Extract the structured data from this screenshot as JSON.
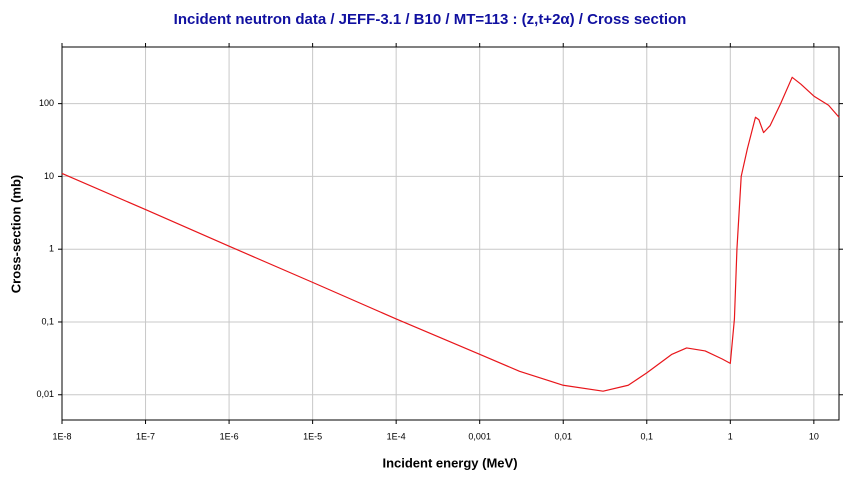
{
  "chart_data": {
    "type": "line",
    "title": "Incident neutron data / JEFF-3.1 / B10 / MT=113 : (z,t+2α) / Cross section",
    "x_label": "Incident energy (MeV)",
    "y_label": "Cross-section (mb)",
    "xscale": "log",
    "yscale": "log",
    "grid": true,
    "x": [
      1e-08,
      1e-07,
      1e-06,
      1e-05,
      0.0001,
      0.001,
      0.003,
      0.01,
      0.03,
      0.06,
      0.1,
      0.2,
      0.3,
      0.5,
      0.8,
      1,
      1.12,
      1.2,
      1.35,
      1.6,
      2.0,
      2.2,
      2.5,
      3,
      4,
      5.5,
      7,
      10,
      15,
      20
    ],
    "series": [
      {
        "color": "#e8161b",
        "values": [
          11,
          3.5,
          1.1,
          0.35,
          0.11,
          0.036,
          0.021,
          0.0135,
          0.0112,
          0.0135,
          0.02,
          0.036,
          0.044,
          0.04,
          0.031,
          0.027,
          0.11,
          1,
          10,
          24,
          65,
          60,
          40,
          50,
          100,
          230,
          185,
          127,
          95,
          65
        ]
      }
    ],
    "xlim": [
      1e-08,
      20
    ],
    "ylim": [
      0.0045,
      600
    ],
    "xticks": [
      {
        "value": 1e-08,
        "label": "1E-8"
      },
      {
        "value": 1e-07,
        "label": "1E-7"
      },
      {
        "value": 1e-06,
        "label": "1E-6"
      },
      {
        "value": 1e-05,
        "label": "1E-5"
      },
      {
        "value": 0.0001,
        "label": "1E-4"
      },
      {
        "value": 0.001,
        "label": "0,001"
      },
      {
        "value": 0.01,
        "label": "0,01"
      },
      {
        "value": 0.1,
        "label": "0,1"
      },
      1,
      10
    ],
    "yticks": [
      {
        "value": 0.01,
        "label": "0,01"
      },
      {
        "value": 0.1,
        "label": "0,1"
      },
      1,
      10,
      100
    ]
  }
}
